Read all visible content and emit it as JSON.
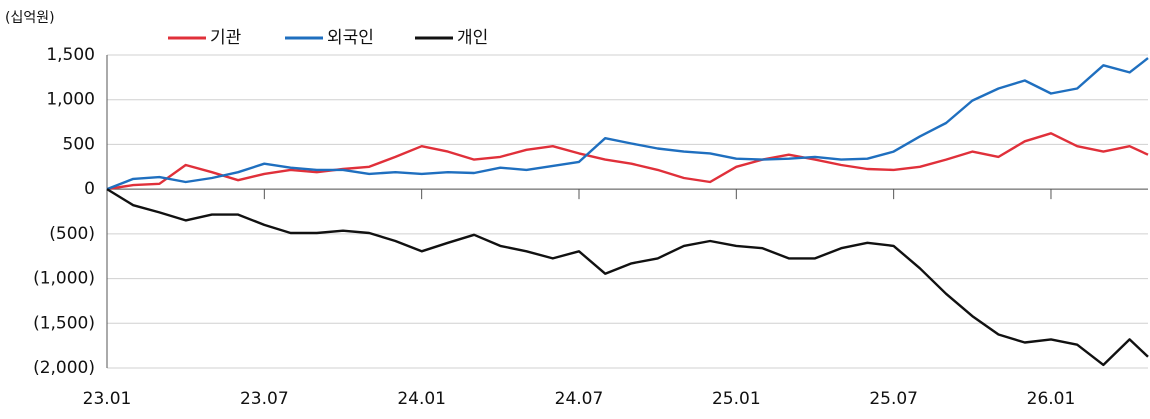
{
  "chart_data": {
    "type": "line",
    "unit_label": "(십억원)",
    "x": [
      0,
      1,
      2,
      3,
      4,
      5,
      6,
      7,
      8,
      9,
      10,
      11,
      12,
      13,
      14,
      15,
      16,
      17,
      18,
      19,
      20,
      21,
      22,
      23,
      24,
      25,
      26,
      27,
      28,
      29,
      30,
      31,
      32,
      33,
      34,
      35,
      36,
      37,
      38,
      39,
      39.7
    ],
    "xlim": [
      0,
      39.7
    ],
    "xticks": [
      {
        "value": 0,
        "label": "23.01"
      },
      {
        "value": 6,
        "label": "23.07"
      },
      {
        "value": 12,
        "label": "24.01"
      },
      {
        "value": 18,
        "label": "24.07"
      },
      {
        "value": 24,
        "label": "25.01"
      },
      {
        "value": 30,
        "label": "25.07"
      },
      {
        "value": 36,
        "label": "26.01"
      }
    ],
    "ylim": [
      -2000,
      1500
    ],
    "yticks": [
      {
        "value": 1500,
        "label": "1,500"
      },
      {
        "value": 1000,
        "label": "1,000"
      },
      500,
      0,
      {
        "value": -500,
        "label": "(500)"
      },
      {
        "value": -1000,
        "label": "(1,000)"
      },
      {
        "value": -1500,
        "label": "(1,500)"
      },
      {
        "value": -2000,
        "label": "(2,000)"
      }
    ],
    "grid": true,
    "legend": "top",
    "series": [
      {
        "name": "기관",
        "color": "#e0303a",
        "values": [
          0,
          45,
          60,
          270,
          190,
          100,
          170,
          215,
          190,
          225,
          250,
          360,
          480,
          420,
          330,
          360,
          440,
          480,
          400,
          330,
          285,
          215,
          125,
          80,
          250,
          330,
          385,
          330,
          270,
          225,
          215,
          250,
          330,
          420,
          360,
          535,
          625,
          480,
          420,
          480,
          385
        ]
      },
      {
        "name": "외국인",
        "color": "#1f6fbf",
        "values": [
          0,
          115,
          135,
          80,
          125,
          190,
          285,
          240,
          215,
          215,
          170,
          190,
          170,
          190,
          180,
          240,
          215,
          260,
          305,
          570,
          510,
          455,
          420,
          400,
          340,
          330,
          340,
          360,
          330,
          340,
          420,
          590,
          740,
          990,
          1125,
          1215,
          1070,
          1125,
          1385,
          1305,
          1465
        ]
      },
      {
        "name": "개인",
        "color": "#111111",
        "values": [
          0,
          -180,
          -260,
          -350,
          -285,
          -285,
          -400,
          -490,
          -490,
          -465,
          -490,
          -580,
          -695,
          -600,
          -510,
          -635,
          -695,
          -775,
          -695,
          -945,
          -830,
          -775,
          -635,
          -580,
          -635,
          -660,
          -775,
          -775,
          -660,
          -600,
          -635,
          -885,
          -1170,
          -1420,
          -1625,
          -1715,
          -1680,
          -1740,
          -1965,
          -1680,
          -1875
        ]
      }
    ]
  }
}
